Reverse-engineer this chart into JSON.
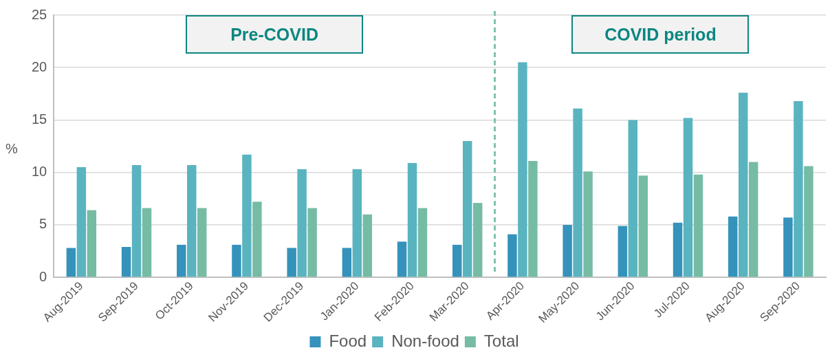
{
  "chart_data": {
    "type": "bar",
    "ylabel": "%",
    "categories": [
      "Aug-2019",
      "Sep-2019",
      "Oct-2019",
      "Nov-2019",
      "Dec-2019",
      "Jan-2020",
      "Feb-2020",
      "Mar-2020",
      "Apr-2020",
      "May-2020",
      "Jun-2020",
      "Jul-2020",
      "Aug-2020",
      "Sep-2020"
    ],
    "series": [
      {
        "name": "Food",
        "color": "#3592bb",
        "values": [
          2.8,
          2.9,
          3.1,
          3.1,
          2.8,
          2.8,
          3.4,
          3.1,
          4.1,
          5.0,
          4.9,
          5.2,
          5.8,
          5.7
        ]
      },
      {
        "name": "Non-food",
        "color": "#59b4c0",
        "values": [
          10.5,
          10.7,
          10.7,
          11.7,
          10.3,
          10.3,
          10.9,
          13.0,
          20.5,
          16.1,
          15.0,
          15.2,
          17.6,
          16.8
        ]
      },
      {
        "name": "Total",
        "color": "#76bca4",
        "values": [
          6.4,
          6.6,
          6.6,
          7.2,
          6.6,
          6.0,
          6.6,
          7.1,
          11.1,
          10.1,
          9.7,
          9.8,
          11.0,
          10.6
        ]
      }
    ],
    "ylim": [
      0,
      25
    ],
    "yticks": [
      0,
      5,
      10,
      15,
      20,
      25
    ],
    "grid": "y",
    "legend": "bottom",
    "annotations": [
      "Pre-COVID",
      "COVID period"
    ]
  }
}
